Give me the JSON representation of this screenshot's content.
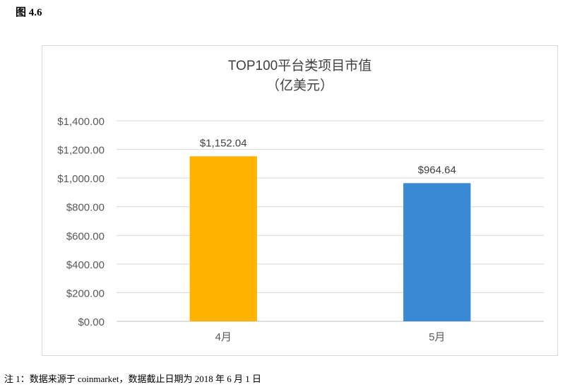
{
  "figure_label": "图 4.6",
  "note": "注 1：数据来源于 coinmarket，数据截止日期为 2018 年 6 月 1 日",
  "chart_data": {
    "type": "bar",
    "title": "TOP100平台类项目市值",
    "subtitle": "（亿美元）",
    "categories": [
      "4月",
      "5月"
    ],
    "values": [
      1152.04,
      964.64
    ],
    "value_labels": [
      "$1,152.04",
      "$964.64"
    ],
    "bar_colors": [
      "#FFB300",
      "#3A89D4"
    ],
    "ylim": [
      0,
      1400
    ],
    "yticks": [
      0,
      200,
      400,
      600,
      800,
      1000,
      1200,
      1400
    ],
    "ytick_labels": [
      "$0.00",
      "$200.00",
      "$400.00",
      "$600.00",
      "$800.00",
      "$1,000.00",
      "$1,200.00",
      "$1,400.00"
    ],
    "xlabel": "",
    "ylabel": "",
    "grid": true,
    "legend": false
  }
}
